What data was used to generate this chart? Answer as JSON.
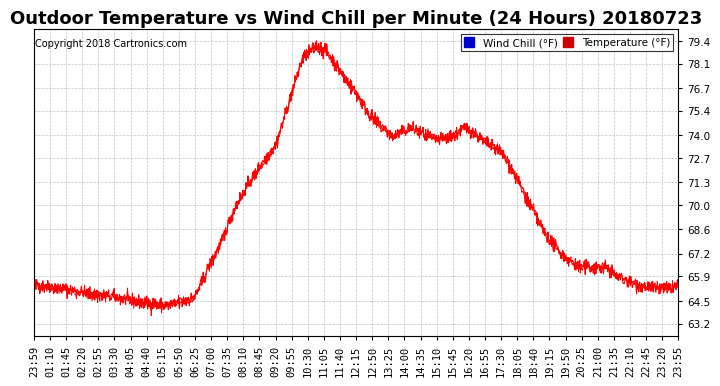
{
  "title": "Outdoor Temperature vs Wind Chill per Minute (24 Hours) 20180723",
  "copyright": "Copyright 2018 Cartronics.com",
  "legend_wind_chill": "Wind Chill (°F)",
  "legend_temperature": "Temperature (°F)",
  "wind_chill_color": "#0000ff",
  "temperature_color": "#ff0000",
  "line_color": "#ff0000",
  "background_color": "#ffffff",
  "plot_bg_color": "#ffffff",
  "grid_color": "#aaaaaa",
  "yticks": [
    63.2,
    64.5,
    65.9,
    67.2,
    68.6,
    70.0,
    71.3,
    72.7,
    74.0,
    75.4,
    76.7,
    78.1,
    79.4
  ],
  "ylim": [
    62.5,
    80.1
  ],
  "xlabel": "",
  "ylabel": "",
  "title_fontsize": 13,
  "tick_fontsize": 7.5,
  "copyright_fontsize": 7
}
